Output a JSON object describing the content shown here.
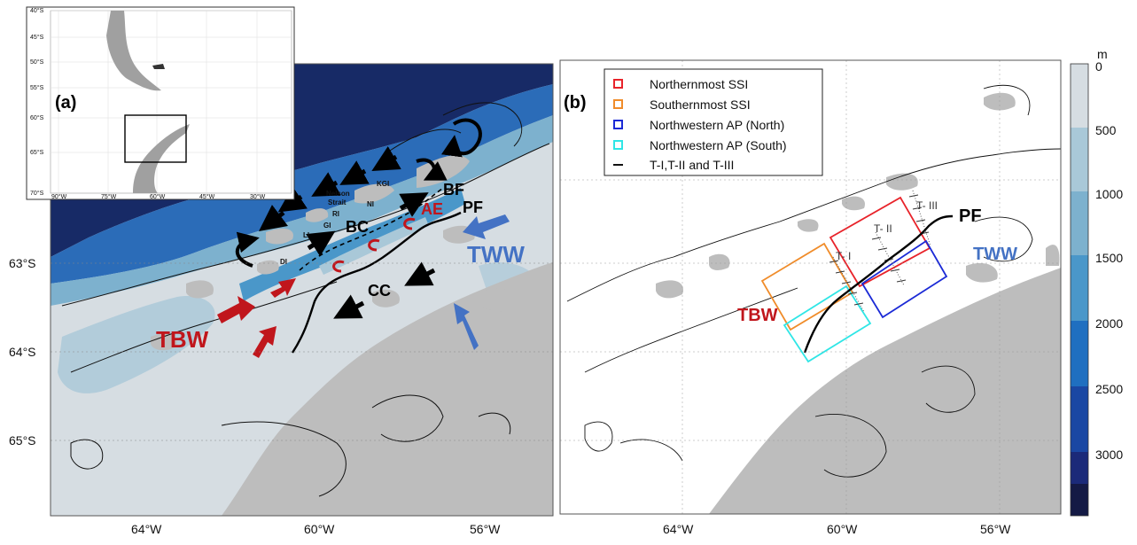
{
  "inset": {
    "panel_label": "(a)",
    "lat_ticks": [
      "40°S",
      "45°S",
      "50°S",
      "55°S",
      "60°S",
      "65°S",
      "70°S"
    ],
    "lon_ticks": [
      "90°W",
      "75°W",
      "60°W",
      "45°W",
      "30°W"
    ]
  },
  "panel_a": {
    "lat_ticks": [
      "63°S",
      "64°S",
      "65°S"
    ],
    "lon_ticks": [
      "64°W",
      "60°W",
      "56°W"
    ],
    "labels": {
      "tbw": "TBW",
      "tww": "TWW",
      "ae": "AE",
      "bf": "BF",
      "pf": "PF",
      "bc": "BC",
      "cc": "CC",
      "kgi": "KGI",
      "ni": "NI",
      "nelson": "Nelson",
      "strait": "Strait",
      "ri": "RI",
      "gi": "GI",
      "li": "LI",
      "di": "DI"
    }
  },
  "panel_b": {
    "panel_label": "(b)",
    "lat_ticks": [
      "63°S",
      "64°S",
      "65°S"
    ],
    "lon_ticks": [
      "64°W",
      "60°W",
      "56°W"
    ],
    "labels": {
      "tbw": "TBW",
      "tww": "TWW",
      "pf": "PF",
      "t1": "T- I",
      "t2": "T- II",
      "t3": "T- III"
    },
    "legend": [
      {
        "label": "Northernmost SSI",
        "color": "#e8232a"
      },
      {
        "label": "Southernmost SSI",
        "color": "#f08c2a"
      },
      {
        "label": "Northwestern AP (North)",
        "color": "#1b2ad6"
      },
      {
        "label": "Northwestern AP (South)",
        "color": "#2fe6e6"
      },
      {
        "label": "T-I,T-II and T-III",
        "color": "#111111"
      }
    ]
  },
  "colorbar": {
    "unit": "m",
    "levels": [
      {
        "label": "0",
        "color": "#d6dde2"
      },
      {
        "label": "500",
        "color": "#a9c8d8"
      },
      {
        "label": "1000",
        "color": "#7db1ce"
      },
      {
        "label": "1500",
        "color": "#4a97c9"
      },
      {
        "label": "2000",
        "color": "#1f6fc0"
      },
      {
        "label": "2500",
        "color": "#1a47a3"
      },
      {
        "label": "3000",
        "color": "#1b2a79"
      },
      {
        "label": "",
        "color": "#141a45"
      }
    ]
  },
  "colors": {
    "land": "#bdbdbd",
    "shelf": "#d6dde2",
    "deep": "#172a66",
    "red_arrow": "#c0161c",
    "blue_arrow": "#4472c4"
  }
}
